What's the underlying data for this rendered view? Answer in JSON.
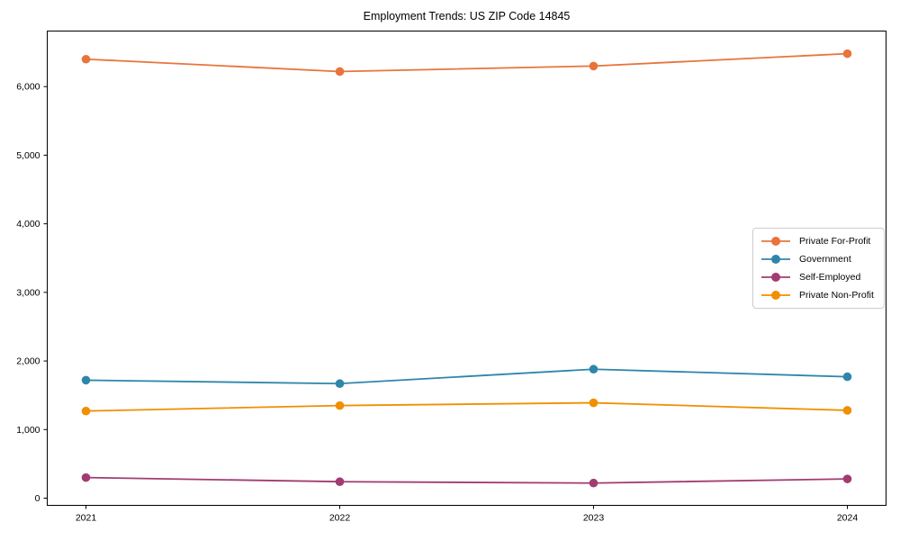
{
  "chart_data": {
    "type": "line",
    "title": "Employment Trends: US ZIP Code 14845",
    "categories": [
      "2021",
      "2022",
      "2023",
      "2024"
    ],
    "series": [
      {
        "name": "Private For-Profit",
        "color": "#E8743B",
        "values": [
          6400,
          6220,
          6300,
          6480
        ]
      },
      {
        "name": "Government",
        "color": "#2E86AB",
        "values": [
          1720,
          1670,
          1880,
          1770
        ]
      },
      {
        "name": "Self-Employed",
        "color": "#A23B72",
        "values": [
          300,
          240,
          220,
          280
        ]
      },
      {
        "name": "Private Non-Profit",
        "color": "#F18F01",
        "values": [
          1270,
          1350,
          1390,
          1280
        ]
      }
    ],
    "ylim": [
      -105,
      6810
    ],
    "yticks": [
      0,
      1000,
      2000,
      3000,
      4000,
      5000,
      6000
    ],
    "ytick_labels": [
      "0",
      "1,000",
      "2,000",
      "3,000",
      "4,000",
      "5,000",
      "6,000"
    ],
    "grid": false,
    "legend_position": "center-right",
    "marker": "circle",
    "axis_color": "#000000",
    "plot_background": "#ffffff"
  }
}
